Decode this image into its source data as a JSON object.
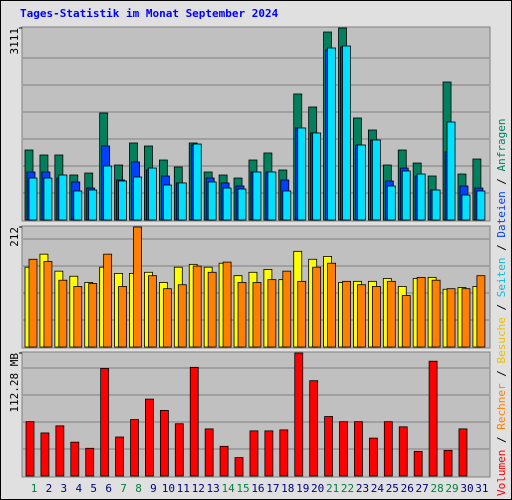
{
  "chart_data": [
    {
      "type": "bar",
      "title": "Tages-Statistik im Monat September 2024",
      "ylim": [
        0,
        3111
      ],
      "yticks": [
        3111
      ],
      "series": [
        {
          "name": "Anfragen",
          "color": "#00805c",
          "values": [
            1134,
            1053,
            1053,
            729,
            761,
            1734,
            891,
            1248,
            1199,
            972,
            859,
            1248,
            778,
            729,
            680,
            972,
            1086,
            810,
            2042,
            1831,
            3046,
            3111,
            1653,
            1458,
            891,
            1134,
            923,
            713,
            2236,
            745,
            988
          ]
        },
        {
          "name": "Dateien",
          "color": "#0040ff",
          "values": [
            778,
            778,
            680,
            616,
            518,
            1199,
            648,
            940,
            810,
            713,
            600,
            1215,
            680,
            600,
            551,
            778,
            778,
            648,
            1491,
            1410,
            2754,
            2803,
            1215,
            1296,
            632,
            842,
            713,
            486,
            1102,
            551,
            518
          ]
        },
        {
          "name": "Seiten",
          "color": "#00e0ff",
          "values": [
            680,
            680,
            729,
            470,
            486,
            875,
            632,
            697,
            842,
            567,
            600,
            1231,
            616,
            518,
            502,
            778,
            778,
            470,
            1491,
            1410,
            2787,
            2819,
            1215,
            1296,
            551,
            794,
            745,
            486,
            1588,
            405,
            470
          ]
        }
      ]
    },
    {
      "type": "bar",
      "ylim": [
        0,
        212
      ],
      "yticks": [
        212
      ],
      "series": [
        {
          "name": "Besuche",
          "color": "#ffff00",
          "values": [
            141,
            164,
            134,
            125,
            114,
            141,
            130,
            130,
            132,
            114,
            141,
            146,
            141,
            148,
            126,
            132,
            137,
            119,
            169,
            155,
            160,
            114,
            116,
            116,
            121,
            107,
            121,
            123,
            102,
            105,
            107
          ]
        },
        {
          "name": "Rechner",
          "color": "#ff8000",
          "values": [
            155,
            151,
            118,
            107,
            112,
            164,
            107,
            212,
            126,
            103,
            110,
            143,
            132,
            150,
            114,
            114,
            119,
            134,
            116,
            141,
            148,
            116,
            110,
            107,
            116,
            91,
            123,
            118,
            103,
            103,
            126
          ]
        }
      ]
    },
    {
      "type": "bar",
      "ylim": [
        0,
        112.28
      ],
      "yticks": [
        {
          "value": 112.28,
          "label": "112.28 MB"
        }
      ],
      "categories": [
        "1",
        "2",
        "3",
        "4",
        "5",
        "6",
        "7",
        "8",
        "9",
        "10",
        "11",
        "12",
        "13",
        "14",
        "15",
        "16",
        "17",
        "18",
        "19",
        "20",
        "21",
        "22",
        "23",
        "24",
        "25",
        "26",
        "27",
        "28",
        "29",
        "30",
        "31"
      ],
      "category_colors": [
        "#008040",
        "#000080",
        "#000080",
        "#000080",
        "#000080",
        "#000080",
        "#008040",
        "#008040",
        "#000080",
        "#000080",
        "#000080",
        "#000080",
        "#000080",
        "#008040",
        "#008040",
        "#000080",
        "#000080",
        "#000080",
        "#000080",
        "#000080",
        "#008040",
        "#008040",
        "#000080",
        "#000080",
        "#000080",
        "#000080",
        "#000080",
        "#008040",
        "#008040",
        "#000080",
        "#000080"
      ],
      "series": [
        {
          "name": "Volumen",
          "color": "#ff0000",
          "values": [
            49.6,
            39.3,
            45.8,
            30.9,
            25.3,
            98.2,
            35.6,
            51.5,
            70.2,
            59.9,
            47.7,
            99.2,
            43.0,
            27.1,
            16.8,
            41.2,
            41.2,
            42.1,
            112.28,
            87.0,
            54.3,
            49.6,
            49.6,
            34.6,
            49.6,
            44.9,
            22.5,
            104.8,
            23.4,
            43.0,
            0
          ]
        }
      ]
    }
  ],
  "legend_separator": " / "
}
